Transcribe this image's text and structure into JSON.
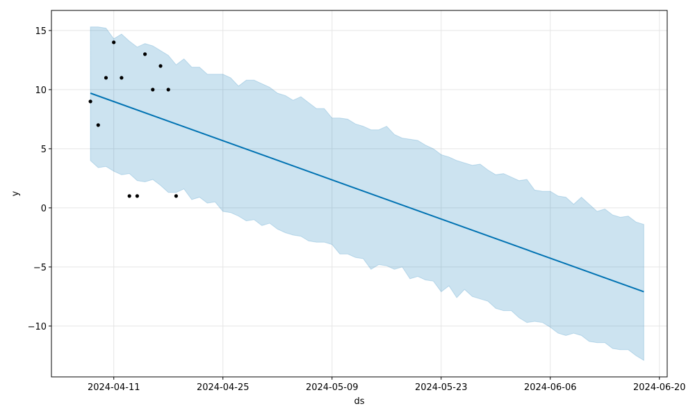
{
  "chart_data": {
    "type": "line",
    "xlabel": "ds",
    "ylabel": "y",
    "x_ticks": [
      "2024-04-11",
      "2024-04-25",
      "2024-05-09",
      "2024-05-23",
      "2024-06-06",
      "2024-06-20"
    ],
    "y_ticks": [
      15,
      10,
      5,
      0,
      -5,
      -10
    ],
    "y_tick_labels": [
      "15",
      "10",
      "5",
      "0",
      "−5",
      "−10"
    ],
    "xlim": [
      "2024-04-03",
      "2024-06-21"
    ],
    "ylim": [
      -14.3,
      16.7
    ],
    "grid": true,
    "colors": {
      "forecast_line": "#0072B2",
      "uncertainty_fill": "#0072B2",
      "observed_points": "#000000",
      "grid": "#e5e5e5"
    },
    "observed": [
      {
        "x": "2024-04-08",
        "y": 9
      },
      {
        "x": "2024-04-09",
        "y": 7
      },
      {
        "x": "2024-04-10",
        "y": 11
      },
      {
        "x": "2024-04-11",
        "y": 14
      },
      {
        "x": "2024-04-12",
        "y": 11
      },
      {
        "x": "2024-04-13",
        "y": 1
      },
      {
        "x": "2024-04-14",
        "y": 1
      },
      {
        "x": "2024-04-15",
        "y": 13
      },
      {
        "x": "2024-04-16",
        "y": 10
      },
      {
        "x": "2024-04-17",
        "y": 12
      },
      {
        "x": "2024-04-18",
        "y": 10
      },
      {
        "x": "2024-04-19",
        "y": 1
      }
    ],
    "forecast": [
      {
        "x": "2024-04-08",
        "y": 9.7
      },
      {
        "x": "2024-06-18",
        "y": -7.1
      }
    ],
    "interval_upper": [
      {
        "x": "2024-04-08",
        "y": 15.3
      },
      {
        "x": "2024-04-09",
        "y": 15.3
      },
      {
        "x": "2024-04-10",
        "y": 15.2
      },
      {
        "x": "2024-04-11",
        "y": 14.3
      },
      {
        "x": "2024-04-12",
        "y": 14.7
      },
      {
        "x": "2024-04-13",
        "y": 14.1
      },
      {
        "x": "2024-04-14",
        "y": 13.6
      },
      {
        "x": "2024-04-15",
        "y": 13.9
      },
      {
        "x": "2024-04-16",
        "y": 13.7
      },
      {
        "x": "2024-04-17",
        "y": 13.3
      },
      {
        "x": "2024-04-18",
        "y": 12.9
      },
      {
        "x": "2024-04-19",
        "y": 12.1
      },
      {
        "x": "2024-04-20",
        "y": 12.6
      },
      {
        "x": "2024-04-21",
        "y": 11.9
      },
      {
        "x": "2024-04-22",
        "y": 11.9
      },
      {
        "x": "2024-04-23",
        "y": 11.3
      },
      {
        "x": "2024-04-24",
        "y": 11.3
      },
      {
        "x": "2024-04-25",
        "y": 11.3
      },
      {
        "x": "2024-04-26",
        "y": 11.0
      },
      {
        "x": "2024-04-27",
        "y": 10.3
      },
      {
        "x": "2024-04-28",
        "y": 10.8
      },
      {
        "x": "2024-04-29",
        "y": 10.8
      },
      {
        "x": "2024-04-30",
        "y": 10.5
      },
      {
        "x": "2024-05-01",
        "y": 10.2
      },
      {
        "x": "2024-05-02",
        "y": 9.7
      },
      {
        "x": "2024-05-03",
        "y": 9.5
      },
      {
        "x": "2024-05-04",
        "y": 9.1
      },
      {
        "x": "2024-05-05",
        "y": 9.4
      },
      {
        "x": "2024-05-06",
        "y": 8.9
      },
      {
        "x": "2024-05-07",
        "y": 8.4
      },
      {
        "x": "2024-05-08",
        "y": 8.4
      },
      {
        "x": "2024-05-09",
        "y": 7.6
      },
      {
        "x": "2024-05-10",
        "y": 7.6
      },
      {
        "x": "2024-05-11",
        "y": 7.5
      },
      {
        "x": "2024-05-12",
        "y": 7.1
      },
      {
        "x": "2024-05-13",
        "y": 6.9
      },
      {
        "x": "2024-05-14",
        "y": 6.6
      },
      {
        "x": "2024-05-15",
        "y": 6.6
      },
      {
        "x": "2024-05-16",
        "y": 6.9
      },
      {
        "x": "2024-05-17",
        "y": 6.2
      },
      {
        "x": "2024-05-18",
        "y": 5.9
      },
      {
        "x": "2024-05-19",
        "y": 5.8
      },
      {
        "x": "2024-05-20",
        "y": 5.7
      },
      {
        "x": "2024-05-21",
        "y": 5.3
      },
      {
        "x": "2024-05-22",
        "y": 5.0
      },
      {
        "x": "2024-05-23",
        "y": 4.5
      },
      {
        "x": "2024-05-24",
        "y": 4.3
      },
      {
        "x": "2024-05-25",
        "y": 4.0
      },
      {
        "x": "2024-05-26",
        "y": 3.8
      },
      {
        "x": "2024-05-27",
        "y": 3.6
      },
      {
        "x": "2024-05-28",
        "y": 3.7
      },
      {
        "x": "2024-05-29",
        "y": 3.2
      },
      {
        "x": "2024-05-30",
        "y": 2.8
      },
      {
        "x": "2024-05-31",
        "y": 2.9
      },
      {
        "x": "2024-06-01",
        "y": 2.6
      },
      {
        "x": "2024-06-02",
        "y": 2.3
      },
      {
        "x": "2024-06-03",
        "y": 2.4
      },
      {
        "x": "2024-06-04",
        "y": 1.5
      },
      {
        "x": "2024-06-05",
        "y": 1.4
      },
      {
        "x": "2024-06-06",
        "y": 1.4
      },
      {
        "x": "2024-06-07",
        "y": 1.0
      },
      {
        "x": "2024-06-08",
        "y": 0.9
      },
      {
        "x": "2024-06-09",
        "y": 0.3
      },
      {
        "x": "2024-06-10",
        "y": 0.9
      },
      {
        "x": "2024-06-11",
        "y": 0.3
      },
      {
        "x": "2024-06-12",
        "y": -0.3
      },
      {
        "x": "2024-06-13",
        "y": -0.1
      },
      {
        "x": "2024-06-14",
        "y": -0.6
      },
      {
        "x": "2024-06-15",
        "y": -0.8
      },
      {
        "x": "2024-06-16",
        "y": -0.7
      },
      {
        "x": "2024-06-17",
        "y": -1.2
      },
      {
        "x": "2024-06-18",
        "y": -1.4
      }
    ],
    "interval_lower": [
      {
        "x": "2024-04-08",
        "y": 4.0
      },
      {
        "x": "2024-04-09",
        "y": 3.4
      },
      {
        "x": "2024-04-10",
        "y": 3.5
      },
      {
        "x": "2024-04-11",
        "y": 3.1
      },
      {
        "x": "2024-04-12",
        "y": 2.8
      },
      {
        "x": "2024-04-13",
        "y": 2.9
      },
      {
        "x": "2024-04-14",
        "y": 2.3
      },
      {
        "x": "2024-04-15",
        "y": 2.2
      },
      {
        "x": "2024-04-16",
        "y": 2.4
      },
      {
        "x": "2024-04-17",
        "y": 1.9
      },
      {
        "x": "2024-04-18",
        "y": 1.3
      },
      {
        "x": "2024-04-19",
        "y": 1.3
      },
      {
        "x": "2024-04-20",
        "y": 1.6
      },
      {
        "x": "2024-04-21",
        "y": 0.7
      },
      {
        "x": "2024-04-22",
        "y": 0.9
      },
      {
        "x": "2024-04-23",
        "y": 0.4
      },
      {
        "x": "2024-04-24",
        "y": 0.5
      },
      {
        "x": "2024-04-25",
        "y": -0.3
      },
      {
        "x": "2024-04-26",
        "y": -0.4
      },
      {
        "x": "2024-04-27",
        "y": -0.7
      },
      {
        "x": "2024-04-28",
        "y": -1.1
      },
      {
        "x": "2024-04-29",
        "y": -1.0
      },
      {
        "x": "2024-04-30",
        "y": -1.5
      },
      {
        "x": "2024-05-01",
        "y": -1.3
      },
      {
        "x": "2024-05-02",
        "y": -1.8
      },
      {
        "x": "2024-05-03",
        "y": -2.1
      },
      {
        "x": "2024-05-04",
        "y": -2.3
      },
      {
        "x": "2024-05-05",
        "y": -2.4
      },
      {
        "x": "2024-05-06",
        "y": -2.8
      },
      {
        "x": "2024-05-07",
        "y": -2.9
      },
      {
        "x": "2024-05-08",
        "y": -2.9
      },
      {
        "x": "2024-05-09",
        "y": -3.1
      },
      {
        "x": "2024-05-10",
        "y": -3.9
      },
      {
        "x": "2024-05-11",
        "y": -3.9
      },
      {
        "x": "2024-05-12",
        "y": -4.2
      },
      {
        "x": "2024-05-13",
        "y": -4.3
      },
      {
        "x": "2024-05-14",
        "y": -5.2
      },
      {
        "x": "2024-05-15",
        "y": -4.8
      },
      {
        "x": "2024-05-16",
        "y": -4.9
      },
      {
        "x": "2024-05-17",
        "y": -5.2
      },
      {
        "x": "2024-05-18",
        "y": -5.0
      },
      {
        "x": "2024-05-19",
        "y": -6.0
      },
      {
        "x": "2024-05-20",
        "y": -5.8
      },
      {
        "x": "2024-05-21",
        "y": -6.1
      },
      {
        "x": "2024-05-22",
        "y": -6.2
      },
      {
        "x": "2024-05-23",
        "y": -7.1
      },
      {
        "x": "2024-05-24",
        "y": -6.6
      },
      {
        "x": "2024-05-25",
        "y": -7.6
      },
      {
        "x": "2024-05-26",
        "y": -6.9
      },
      {
        "x": "2024-05-27",
        "y": -7.5
      },
      {
        "x": "2024-05-28",
        "y": -7.7
      },
      {
        "x": "2024-05-29",
        "y": -7.9
      },
      {
        "x": "2024-05-30",
        "y": -8.5
      },
      {
        "x": "2024-05-31",
        "y": -8.7
      },
      {
        "x": "2024-06-01",
        "y": -8.7
      },
      {
        "x": "2024-06-02",
        "y": -9.3
      },
      {
        "x": "2024-06-03",
        "y": -9.7
      },
      {
        "x": "2024-06-04",
        "y": -9.6
      },
      {
        "x": "2024-06-05",
        "y": -9.7
      },
      {
        "x": "2024-06-06",
        "y": -10.1
      },
      {
        "x": "2024-06-07",
        "y": -10.6
      },
      {
        "x": "2024-06-08",
        "y": -10.8
      },
      {
        "x": "2024-06-09",
        "y": -10.6
      },
      {
        "x": "2024-06-10",
        "y": -10.8
      },
      {
        "x": "2024-06-11",
        "y": -11.3
      },
      {
        "x": "2024-06-12",
        "y": -11.4
      },
      {
        "x": "2024-06-13",
        "y": -11.4
      },
      {
        "x": "2024-06-14",
        "y": -11.9
      },
      {
        "x": "2024-06-15",
        "y": -12.0
      },
      {
        "x": "2024-06-16",
        "y": -12.0
      },
      {
        "x": "2024-06-17",
        "y": -12.5
      },
      {
        "x": "2024-06-18",
        "y": -12.9
      }
    ]
  }
}
